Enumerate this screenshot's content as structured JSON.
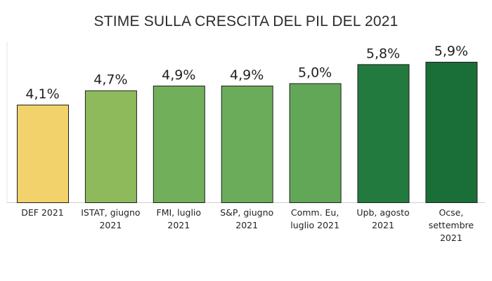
{
  "chart_data": {
    "type": "bar",
    "title": "STIME SULLA CRESCITA DEL PIL DEL 2021",
    "xlabel": "",
    "ylabel": "",
    "ylim": [
      0,
      6.5
    ],
    "grid": false,
    "legend": "none",
    "categories": [
      [
        "DEF 2021"
      ],
      [
        "ISTAT, giugno",
        "2021"
      ],
      [
        "FMI, luglio",
        "2021"
      ],
      [
        "S&P, giugno",
        "2021"
      ],
      [
        "Comm. Eu,",
        "luglio 2021"
      ],
      [
        "Upb, agosto",
        "2021"
      ],
      [
        "Ocse,",
        "settembre",
        "2021"
      ]
    ],
    "values": [
      4.1,
      4.7,
      4.9,
      4.9,
      5.0,
      5.8,
      5.9
    ],
    "value_labels": [
      "4,1%",
      "4,7%",
      "4,9%",
      "4,9%",
      "5,0%",
      "5,8%",
      "5,9%"
    ],
    "colors": [
      "#f2d36b",
      "#8fba5c",
      "#72af5a",
      "#6aac59",
      "#62a757",
      "#237a3e",
      "#1a6e38"
    ]
  }
}
